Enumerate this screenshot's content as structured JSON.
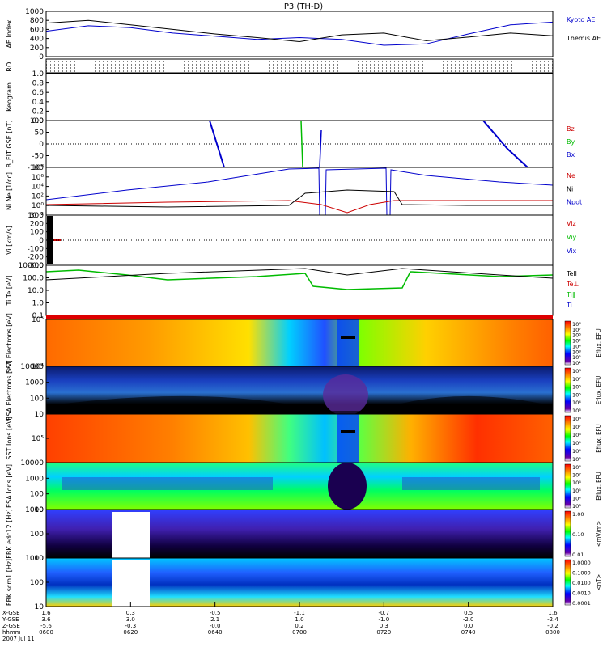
{
  "title": "P3 (TH-D)",
  "chart_data": [
    {
      "type": "line",
      "ylabel": "AE Index",
      "yticks": [
        "1000",
        "800",
        "600",
        "400",
        "200",
        "0"
      ],
      "ylim": [
        0,
        1000
      ],
      "series": [
        {
          "name": "Kyoto AE",
          "color": "#0000cc",
          "x": [
            0,
            10,
            20,
            30,
            40,
            50,
            60,
            70,
            80,
            90,
            100,
            110,
            120
          ],
          "y": [
            560,
            680,
            640,
            520,
            450,
            380,
            420,
            380,
            250,
            280,
            500,
            700,
            760
          ]
        },
        {
          "name": "Themis AE",
          "color": "#000000",
          "x": [
            0,
            10,
            20,
            30,
            40,
            50,
            60,
            70,
            80,
            90,
            100,
            110,
            120
          ],
          "y": [
            740,
            800,
            700,
            600,
            500,
            420,
            330,
            480,
            520,
            350,
            430,
            520,
            460
          ]
        }
      ]
    },
    {
      "type": "other",
      "ylabel": "ROI"
    },
    {
      "type": "line",
      "ylabel": "Keogram",
      "yticks": [
        "1.0",
        "0.8",
        "0.6",
        "0.4",
        "0.2",
        "0.0"
      ],
      "ylim": [
        0,
        1
      ]
    },
    {
      "type": "line",
      "ylabel": "B_FIT GSE [nT]",
      "yticks": [
        "100",
        "50",
        "0",
        "-50",
        "-100"
      ],
      "ylim": [
        -100,
        100
      ],
      "series": [
        {
          "name": "Bz",
          "color": "#cc0000"
        },
        {
          "name": "By",
          "color": "#00bb00"
        },
        {
          "name": "Bx",
          "color": "#0000cc"
        }
      ]
    },
    {
      "type": "line",
      "ylabel": "Ni Ne [1/cc]",
      "yticks": [
        "10⁸",
        "10⁶",
        "10⁴",
        "10²",
        "10⁰",
        "10⁻²"
      ],
      "series": [
        {
          "name": "Ne",
          "color": "#cc0000"
        },
        {
          "name": "Ni",
          "color": "#000000"
        },
        {
          "name": "Npot",
          "color": "#0000cc"
        }
      ]
    },
    {
      "type": "line",
      "ylabel": "Vi [km/s]",
      "yticks": [
        "300",
        "200",
        "100",
        "0",
        "-100",
        "-200",
        "-300"
      ],
      "ylim": [
        -300,
        300
      ],
      "series": [
        {
          "name": "Viz",
          "color": "#cc0000"
        },
        {
          "name": "Viy",
          "color": "#00bb00"
        },
        {
          "name": "Vix",
          "color": "#0000cc"
        }
      ]
    },
    {
      "type": "line",
      "ylabel": "Ti Te [eV]",
      "yticks": [
        "1000.0",
        "100.0",
        "10.0",
        "1.0",
        "0.1"
      ],
      "series": [
        {
          "name": "Tell",
          "color": "#000000"
        },
        {
          "name": "Te⊥",
          "color": "#cc0000"
        },
        {
          "name": "Ti∥",
          "color": "#00bb00"
        },
        {
          "name": "Ti⊥",
          "color": "#0000cc"
        }
      ]
    },
    {
      "type": "heatmap",
      "ylabel": "SST Electrons [eV]",
      "yticks": [
        "10⁵",
        "10⁴"
      ],
      "colorbar_label": "Eflux, EFU",
      "colorbar_ticks": [
        "10⁸",
        "10⁷",
        "10⁶",
        "10⁵",
        "10⁴",
        "10³",
        "10²",
        "10¹"
      ]
    },
    {
      "type": "heatmap",
      "ylabel": "ESA Electrons [eV]",
      "yticks": [
        "10000",
        "1000",
        "100",
        "10"
      ],
      "colorbar_label": "Eflux, EFU",
      "colorbar_ticks": [
        "10⁸",
        "10⁷",
        "10⁶",
        "10⁵",
        "10⁴",
        "10³"
      ]
    },
    {
      "type": "heatmap",
      "ylabel": "SST Ions [eV]",
      "yticks": [
        "10⁵"
      ],
      "colorbar_label": "Eflux, EFU",
      "colorbar_ticks": [
        "10⁸",
        "10⁷",
        "10⁶",
        "10⁵",
        "10⁴",
        "10³"
      ]
    },
    {
      "type": "heatmap",
      "ylabel": "ESA Ions [eV]",
      "yticks": [
        "10000",
        "1000",
        "100",
        "10"
      ],
      "colorbar_label": "Eflux, EFU",
      "colorbar_ticks": [
        "10⁸",
        "10⁷",
        "10⁶",
        "10⁵",
        "10⁴",
        "10³"
      ]
    },
    {
      "type": "heatmap",
      "ylabel": "FBK edc12 [Hz]",
      "yticks": [
        "1000",
        "100",
        "10"
      ],
      "colorbar_label": "<mV/m>",
      "colorbar_ticks": [
        "1.00",
        "0.10",
        "0.01"
      ]
    },
    {
      "type": "heatmap",
      "ylabel": "FBK scm1 [Hz]",
      "yticks": [
        "1000",
        "100",
        "10"
      ],
      "colorbar_label": "<nT>",
      "colorbar_ticks": [
        "1.0000",
        "0.1000",
        "0.0100",
        "0.0010",
        "0.0001"
      ]
    }
  ],
  "xaxis": {
    "row_labels": [
      "X-GSE",
      "Y-GSE",
      "Z-GSE",
      "hhmm",
      "2007 Jul 11"
    ],
    "ticks": [
      {
        "vals": [
          "1.6",
          "3.6",
          "-5.6",
          "0600"
        ]
      },
      {
        "vals": [
          "0.3",
          "3.0",
          "-0.3",
          "0620"
        ]
      },
      {
        "vals": [
          "-0.5",
          "2.1",
          "-0.0",
          "0640"
        ]
      },
      {
        "vals": [
          "-1.1",
          "1.0",
          "0.2",
          "0700"
        ]
      },
      {
        "vals": [
          "-0.7",
          "-1.0",
          "0.3",
          "0720"
        ]
      },
      {
        "vals": [
          "0.5",
          "-2.0",
          "0.0",
          "0740"
        ]
      },
      {
        "vals": [
          "1.6",
          "-2.4",
          "-0.2",
          "0800"
        ]
      }
    ]
  },
  "colors": {
    "frame": "#000000",
    "kyoto": "#0000cc",
    "themis": "#000000",
    "red": "#cc0000",
    "green": "#00bb00",
    "blue": "#0000cc"
  }
}
